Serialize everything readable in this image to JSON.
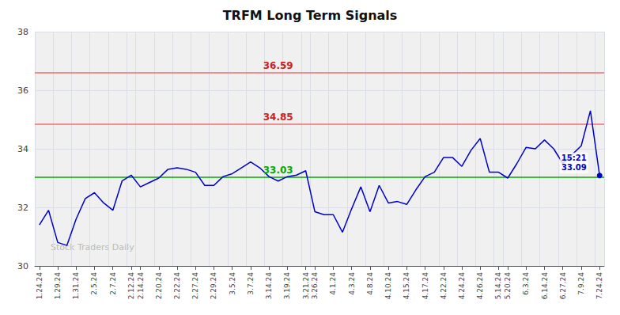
{
  "chart_data": {
    "type": "line",
    "title": "TRFM Long Term Signals",
    "categories": [
      "1.24.24",
      null,
      "1.29.24",
      null,
      "1.31.24",
      null,
      "2.5.24",
      null,
      "2.7.24",
      null,
      "2.12.24",
      "2.14.24",
      null,
      "2.20.24",
      null,
      "2.22.24",
      null,
      "2.27.24",
      null,
      "2.29.24",
      null,
      "3.5.24",
      null,
      "3.7.24",
      null,
      "3.14.24",
      null,
      "3.19.24",
      null,
      "3.21.24",
      "3.26.24",
      null,
      "4.1.24",
      null,
      "4.3.24",
      null,
      "4.8.24",
      null,
      "4.10.24",
      null,
      "4.15.24",
      null,
      "4.17.24",
      null,
      "4.22.24",
      null,
      "4.24.24",
      null,
      "4.26.24",
      null,
      "5.14.24",
      "5.20.24",
      null,
      "6.3.24",
      null,
      "6.14.24",
      null,
      "6.27.24",
      null,
      "7.9.24",
      null,
      "7.24.24"
    ],
    "values": [
      31.4,
      31.9,
      30.8,
      30.7,
      31.6,
      32.3,
      32.5,
      32.15,
      31.9,
      32.9,
      33.1,
      32.7,
      32.85,
      33.0,
      33.3,
      33.35,
      33.3,
      33.2,
      32.75,
      32.75,
      33.05,
      33.15,
      33.35,
      33.55,
      33.35,
      33.05,
      32.9,
      33.05,
      33.1,
      33.25,
      31.85,
      31.75,
      31.75,
      31.15,
      31.95,
      32.7,
      31.85,
      32.75,
      32.15,
      32.2,
      32.1,
      32.6,
      33.05,
      33.2,
      33.7,
      33.7,
      33.4,
      33.95,
      34.35,
      33.2,
      33.2,
      33.0,
      33.5,
      34.05,
      34.0,
      34.3,
      34.0,
      33.5,
      33.8,
      34.1,
      35.3,
      33.09
    ],
    "color": "#0000cc",
    "ylim": [
      30,
      38
    ],
    "yticks": [
      30,
      32,
      34,
      36,
      38
    ],
    "grid": true,
    "hlines": [
      {
        "value": 33.03,
        "label": "33.03",
        "color": "#00aa00",
        "label_color": "#00aa00"
      },
      {
        "value": 34.85,
        "label": "34.85",
        "color": "#e87070",
        "label_color": "#cc2222"
      },
      {
        "value": 36.59,
        "label": "36.59",
        "color": "#e87070",
        "label_color": "#cc2222"
      }
    ],
    "last_point": {
      "time": "15:21",
      "value": 33.09
    },
    "watermark": "Stock Traders Daily"
  }
}
